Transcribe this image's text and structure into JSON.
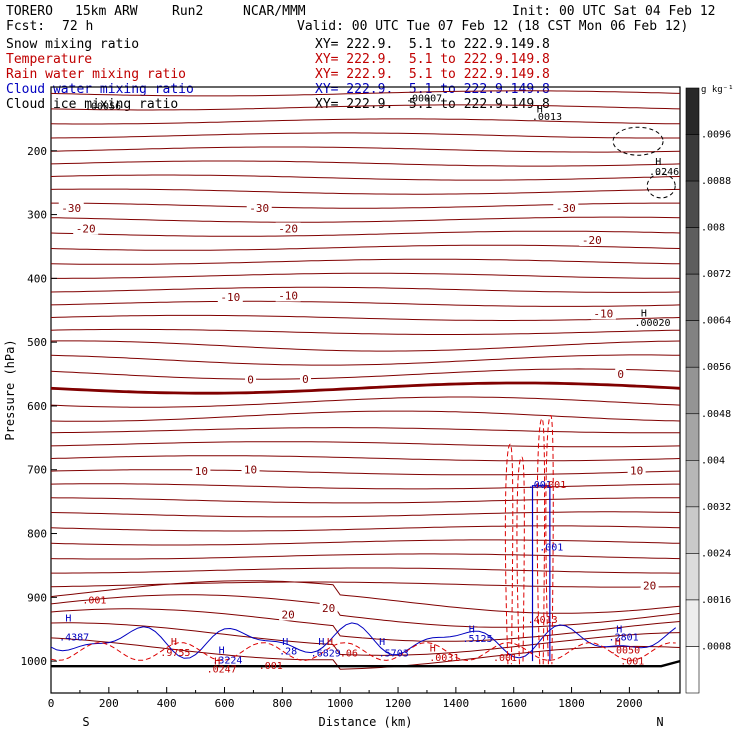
{
  "header": {
    "model": "TORERO",
    "res": "15km ARW",
    "run": "Run2",
    "org": "NCAR/MMM",
    "init": "Init: 00 UTC Sat 04 Feb 12",
    "fcst_label": "Fcst:",
    "fcst_value": "72 h",
    "valid": "Valid: 00 UTC Tue 07 Feb 12 (18 CST Mon 06 Feb 12)"
  },
  "fields": [
    {
      "name": "Snow mixing ratio",
      "color": "#000000",
      "xy": "XY= 222.9.  5.1 to 222.9.149.8"
    },
    {
      "name": "Temperature",
      "color": "#c00000",
      "xy": "XY= 222.9.  5.1 to 222.9.149.8"
    },
    {
      "name": "Rain water mixing ratio",
      "color": "#c00000",
      "xy": "XY= 222.9.  5.1 to 222.9.149.8"
    },
    {
      "name": "Cloud water mixing ratio",
      "color": "#0000c0",
      "xy": "XY= 222.9.  5.1 to 222.9.149.8"
    },
    {
      "name": "Cloud ice mixing ratio",
      "color": "#000000",
      "xy": "XY= 222.9.  5.1 to 222.9.149.8"
    }
  ],
  "chart_data": {
    "type": "cross-section contour",
    "xlabel": "Distance (km)",
    "ylabel": "Pressure (hPa)",
    "xlim": [
      0,
      2175
    ],
    "ylim": [
      1050,
      100
    ],
    "x_ticks": [
      "0",
      "200",
      "400",
      "600",
      "800",
      "1000",
      "1200",
      "1400",
      "1600",
      "1800",
      "2000"
    ],
    "y_ticks": [
      "200",
      "300",
      "400",
      "500",
      "600",
      "700",
      "800",
      "900",
      "1000"
    ],
    "endpoints": {
      "left": "S",
      "right": "N"
    },
    "colorbar": {
      "unit": "g kg⁻¹",
      "labels": [
        ".0096",
        ".0088",
        ".008",
        ".0072",
        ".0064",
        ".0056",
        ".0048",
        ".004",
        ".0032",
        ".0024",
        ".0016",
        ".0008"
      ]
    },
    "isotherm_labels": [
      {
        "text": "-30",
        "x": 70,
        "p": 293
      },
      {
        "text": "-30",
        "x": 720,
        "p": 293
      },
      {
        "text": "-30",
        "x": 1780,
        "p": 293
      },
      {
        "text": "-20",
        "x": 120,
        "p": 325
      },
      {
        "text": "-20",
        "x": 820,
        "p": 325
      },
      {
        "text": "-20",
        "x": 1870,
        "p": 343
      },
      {
        "text": "-10",
        "x": 620,
        "p": 432
      },
      {
        "text": "-10",
        "x": 820,
        "p": 430
      },
      {
        "text": "-10",
        "x": 1910,
        "p": 458
      },
      {
        "text": "0",
        "x": 690,
        "p": 562
      },
      {
        "text": "0",
        "x": 880,
        "p": 561
      },
      {
        "text": "0",
        "x": 1970,
        "p": 553
      },
      {
        "text": "10",
        "x": 520,
        "p": 705
      },
      {
        "text": "10",
        "x": 690,
        "p": 703
      },
      {
        "text": "10",
        "x": 2025,
        "p": 704
      },
      {
        "text": "20",
        "x": 820,
        "p": 930
      },
      {
        "text": "20",
        "x": 960,
        "p": 920
      },
      {
        "text": "20",
        "x": 2070,
        "p": 885
      }
    ],
    "max_labels": [
      {
        "text": "H",
        "x": 1690,
        "p": 140,
        "color": "#000000"
      },
      {
        "text": ".0013",
        "x": 1715,
        "p": 152,
        "color": "#000000"
      },
      {
        "text": "H",
        "x": 2100,
        "p": 222,
        "color": "#000000"
      },
      {
        "text": ".0246",
        "x": 2120,
        "p": 238,
        "color": "#000000"
      },
      {
        "text": "H",
        "x": 2050,
        "p": 460,
        "color": "#000000"
      },
      {
        "text": ".00020",
        "x": 2080,
        "p": 475,
        "color": "#000000"
      },
      {
        "text": ".00056",
        "x": 180,
        "p": 135,
        "color": "#000000"
      },
      {
        "text": ".00007",
        "x": 1290,
        "p": 123,
        "color": "#000000"
      },
      {
        "text": ".001",
        "x": 150,
        "p": 910,
        "color": "#c00000"
      },
      {
        "text": ".001",
        "x": 1690,
        "p": 729,
        "color": "#0000c0"
      },
      {
        "text": ".001",
        "x": 1740,
        "p": 729,
        "color": "#c00000"
      },
      {
        "text": ".001",
        "x": 1730,
        "p": 827,
        "color": "#0000c0"
      },
      {
        "text": ".4013",
        "x": 1700,
        "p": 940,
        "color": "#c00000"
      },
      {
        "text": "H",
        "x": 60,
        "p": 938,
        "color": "#0000c0"
      },
      {
        "text": ".4387",
        "x": 80,
        "p": 968,
        "color": "#0000c0"
      },
      {
        "text": "H",
        "x": 425,
        "p": 975,
        "color": "#c00000"
      },
      {
        "text": ".9755",
        "x": 430,
        "p": 992,
        "color": "#c00000"
      },
      {
        "text": "H",
        "x": 590,
        "p": 988,
        "color": "#0000c0"
      },
      {
        "text": ".3224",
        "x": 610,
        "p": 1004,
        "color": "#0000c0"
      },
      {
        "text": "H",
        "x": 575,
        "p": 1005,
        "color": "#c00000"
      },
      {
        "text": ".0247",
        "x": 590,
        "p": 1018,
        "color": "#c00000"
      },
      {
        "text": ".001",
        "x": 760,
        "p": 1012,
        "color": "#c00000"
      },
      {
        "text": "H",
        "x": 810,
        "p": 975,
        "color": "#0000c0"
      },
      {
        "text": ".28",
        "x": 820,
        "p": 990,
        "color": "#0000c0"
      },
      {
        "text": "H",
        "x": 935,
        "p": 975,
        "color": "#0000c0"
      },
      {
        "text": ".6829",
        "x": 950,
        "p": 993,
        "color": "#0000c0"
      },
      {
        "text": "H",
        "x": 965,
        "p": 975,
        "color": "#c00000"
      },
      {
        "text": ".06",
        "x": 1030,
        "p": 993,
        "color": "#c00000"
      },
      {
        "text": "H",
        "x": 1145,
        "p": 975,
        "color": "#0000c0"
      },
      {
        "text": ".5703",
        "x": 1185,
        "p": 993,
        "color": "#0000c0"
      },
      {
        "text": "H",
        "x": 1320,
        "p": 985,
        "color": "#c00000"
      },
      {
        "text": ".0031",
        "x": 1360,
        "p": 1000,
        "color": "#c00000"
      },
      {
        "text": "H",
        "x": 1455,
        "p": 955,
        "color": "#0000c0"
      },
      {
        "text": ".5125",
        "x": 1475,
        "p": 970,
        "color": "#0000c0"
      },
      {
        "text": ".001",
        "x": 1570,
        "p": 1000,
        "color": "#c00000"
      },
      {
        "text": "H",
        "x": 1965,
        "p": 955,
        "color": "#0000c0"
      },
      {
        "text": ".2801",
        "x": 1980,
        "p": 968,
        "color": "#0000c0"
      },
      {
        "text": "H",
        "x": 1960,
        "p": 975,
        "color": "#c00000"
      },
      {
        "text": ".0050",
        "x": 1985,
        "p": 988,
        "color": "#c00000"
      },
      {
        "text": ".001",
        "x": 2010,
        "p": 1005,
        "color": "#c00000"
      }
    ]
  }
}
